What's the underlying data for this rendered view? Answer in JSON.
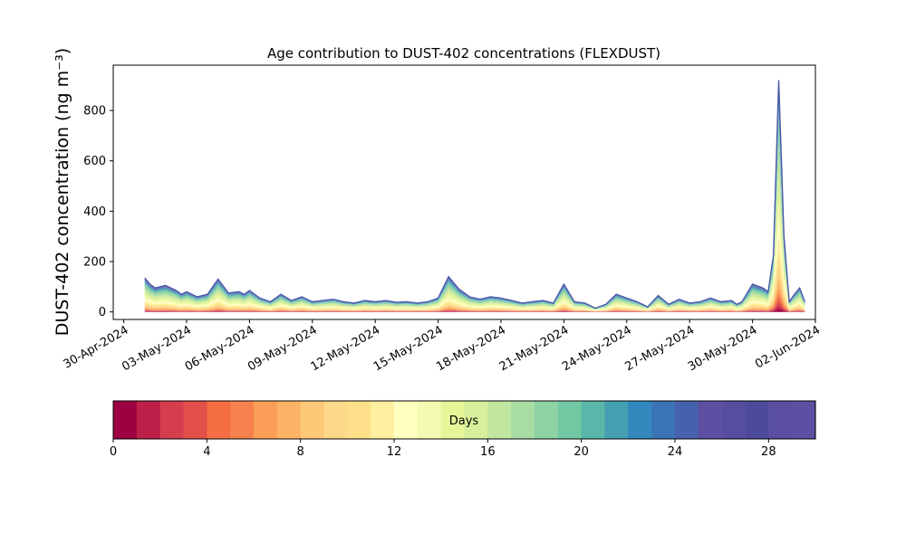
{
  "chart_data": [
    {
      "type": "area",
      "stacked": true,
      "title": "Age contribution to DUST-402 concentrations (FLEXDUST)",
      "ylabel": "DUST-402 concentration (ng m⁻³)",
      "xlabel": "",
      "xlim": [
        "2024-04-29T12:00",
        "2024-06-02T00:00"
      ],
      "ylim": [
        -30,
        980
      ],
      "y_ticks": [
        0,
        200,
        400,
        600,
        800
      ],
      "x_tick_labels": [
        "30-Apr-2024",
        "03-May-2024",
        "06-May-2024",
        "09-May-2024",
        "12-May-2024",
        "15-May-2024",
        "18-May-2024",
        "21-May-2024",
        "24-May-2024",
        "27-May-2024",
        "30-May-2024",
        "02-Jun-2024"
      ],
      "x_tick_dates": [
        "2024-04-30",
        "2024-05-03",
        "2024-05-06",
        "2024-05-09",
        "2024-05-12",
        "2024-05-15",
        "2024-05-18",
        "2024-05-21",
        "2024-05-24",
        "2024-05-27",
        "2024-05-30",
        "2024-06-02"
      ],
      "grid": false,
      "series_note": "stacked bands by age in days (0-30), colored by colorbar",
      "total": {
        "x": [
          "2024-05-01T00:00",
          "2024-05-01T06:00",
          "2024-05-01T12:00",
          "2024-05-02T00:00",
          "2024-05-02T12:00",
          "2024-05-02T18:00",
          "2024-05-03T00:00",
          "2024-05-03T12:00",
          "2024-05-04T00:00",
          "2024-05-04T12:00",
          "2024-05-05T00:00",
          "2024-05-05T12:00",
          "2024-05-05T18:00",
          "2024-05-06T00:00",
          "2024-05-06T12:00",
          "2024-05-07T00:00",
          "2024-05-07T12:00",
          "2024-05-08T00:00",
          "2024-05-08T12:00",
          "2024-05-09T00:00",
          "2024-05-09T12:00",
          "2024-05-10T00:00",
          "2024-05-10T12:00",
          "2024-05-11T00:00",
          "2024-05-11T12:00",
          "2024-05-12T00:00",
          "2024-05-12T12:00",
          "2024-05-13T00:00",
          "2024-05-13T12:00",
          "2024-05-14T00:00",
          "2024-05-14T12:00",
          "2024-05-15T00:00",
          "2024-05-15T12:00",
          "2024-05-16T00:00",
          "2024-05-16T12:00",
          "2024-05-17T00:00",
          "2024-05-17T12:00",
          "2024-05-18T00:00",
          "2024-05-18T12:00",
          "2024-05-19T00:00",
          "2024-05-19T12:00",
          "2024-05-20T00:00",
          "2024-05-20T12:00",
          "2024-05-21T00:00",
          "2024-05-21T12:00",
          "2024-05-22T00:00",
          "2024-05-22T12:00",
          "2024-05-23T00:00",
          "2024-05-23T12:00",
          "2024-05-24T00:00",
          "2024-05-24T12:00",
          "2024-05-25T00:00",
          "2024-05-25T12:00",
          "2024-05-26T00:00",
          "2024-05-26T12:00",
          "2024-05-27T00:00",
          "2024-05-27T12:00",
          "2024-05-28T00:00",
          "2024-05-28T12:00",
          "2024-05-29T00:00",
          "2024-05-29T06:00",
          "2024-05-29T12:00",
          "2024-05-30T00:00",
          "2024-05-30T12:00",
          "2024-05-30T18:00",
          "2024-05-31T00:00",
          "2024-05-31T06:00",
          "2024-05-31T12:00",
          "2024-05-31T18:00",
          "2024-06-01T00:00",
          "2024-06-01T06:00",
          "2024-06-01T12:00"
        ],
        "y": [
          135,
          110,
          95,
          105,
          85,
          70,
          80,
          60,
          70,
          130,
          75,
          80,
          70,
          85,
          55,
          40,
          70,
          45,
          60,
          40,
          45,
          50,
          40,
          35,
          45,
          40,
          45,
          38,
          40,
          35,
          40,
          55,
          140,
          90,
          60,
          50,
          60,
          55,
          45,
          35,
          40,
          45,
          35,
          110,
          40,
          35,
          15,
          30,
          70,
          55,
          40,
          20,
          65,
          30,
          50,
          35,
          40,
          55,
          40,
          45,
          30,
          40,
          110,
          95,
          80,
          225,
          920,
          300,
          40,
          70,
          95,
          40
        ]
      },
      "colorbar": {
        "label": "Days",
        "ticks": [
          0,
          4,
          8,
          12,
          16,
          20,
          24,
          28
        ],
        "range": [
          0,
          30
        ],
        "n_levels": 30,
        "colormap": "Spectral",
        "colors": [
          "#9e0142",
          "#bd1f48",
          "#d53e4f",
          "#e34f4a",
          "#f46d43",
          "#f7814c",
          "#fb9e58",
          "#fdb366",
          "#fdc877",
          "#fdd889",
          "#fee08b",
          "#fff0a0",
          "#ffffbf",
          "#f3fab2",
          "#e6f598",
          "#d8ef9c",
          "#c1e6a0",
          "#a7dca3",
          "#8fd2a4",
          "#73c8a4",
          "#5ab6a9",
          "#449fb3",
          "#3288bd",
          "#3a74b4",
          "#4661ad",
          "#5e4fa2",
          "#564d9e",
          "#4e4a9b",
          "#5a4fa0",
          "#5e4fa2"
        ]
      }
    }
  ]
}
